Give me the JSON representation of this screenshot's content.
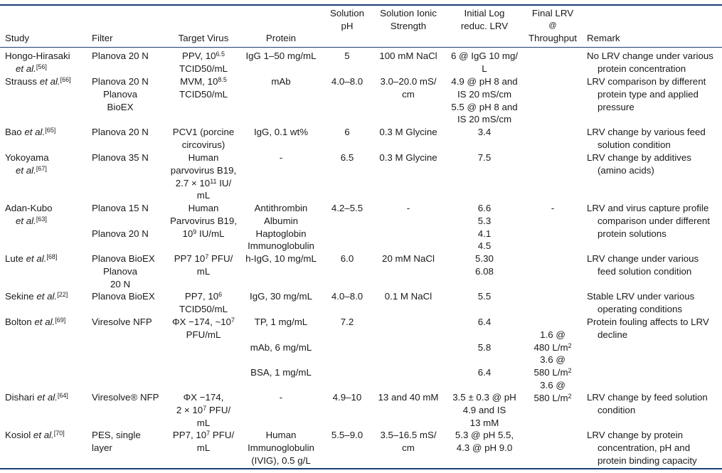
{
  "headers": {
    "study": "Study",
    "filter": "Filter",
    "target_virus": "Target Virus",
    "protein": "Protein",
    "solution_ph": [
      "Solution",
      "pH"
    ],
    "ionic_strength": [
      "Solution Ionic",
      "Strength"
    ],
    "initial_lrv": [
      "Initial Log",
      "reduc. LRV"
    ],
    "final_lrv": [
      "Final LRV",
      "@",
      "Throughput"
    ],
    "remark": "Remark"
  },
  "rows": [
    {
      "study": {
        "name": "Hongo-Hirasaki",
        "name2": "et al.",
        "ref": "[56]"
      },
      "filter": [
        "Planova 20 N"
      ],
      "virus": [
        "PPV, 10^6.5",
        "TCID50/mL"
      ],
      "protein": [
        "IgG 1–50 mg/mL"
      ],
      "ph": [
        "5"
      ],
      "ionic": [
        "100 mM NaCl"
      ],
      "initial": [
        "6 @ IgG 10 mg/",
        "L"
      ],
      "final": [],
      "remark": [
        "No LRV change under various",
        "protein concentration"
      ]
    },
    {
      "study": {
        "name": "Strauss",
        "name2": "",
        "ref": "[66]"
      },
      "filter": [
        "Planova 20 N",
        "Planova",
        "BioEX"
      ],
      "virus": [
        "MVM, 10^8.5",
        "TCID50/mL"
      ],
      "protein": [
        "mAb"
      ],
      "ph": [
        "4.0–8.0"
      ],
      "ionic": [
        "3.0–20.0 mS/",
        "cm"
      ],
      "initial": [
        "4.9 @ pH 8 and",
        "IS 20 mS/cm",
        "5.5 @ pH 8 and",
        "IS 20 mS/cm"
      ],
      "final": [],
      "remark": [
        "LRV comparison by different",
        "protein type and applied",
        "pressure"
      ]
    },
    {
      "study": {
        "name": "Bao",
        "name2": "",
        "ref": "[65]"
      },
      "filter": [
        "Planova 20 N"
      ],
      "virus": [
        "PCV1 (porcine",
        "circovirus)"
      ],
      "protein": [
        "IgG, 0.1 wt%"
      ],
      "ph": [
        "6"
      ],
      "ionic": [
        "0.3 M Glycine"
      ],
      "initial": [
        "3.4"
      ],
      "final": [],
      "remark": [
        "LRV change by various feed",
        "solution condition"
      ]
    },
    {
      "study": {
        "name": "Yokoyama",
        "name2": "et al.",
        "ref": "[67]"
      },
      "filter": [
        "Planova 35 N"
      ],
      "virus": [
        "Human",
        "parvovirus B19,",
        "2.7 × 10^11 IU/",
        "mL"
      ],
      "protein": [
        "-"
      ],
      "ph": [
        "6.5"
      ],
      "ionic": [
        "0.3 M Glycine"
      ],
      "initial": [
        "7.5"
      ],
      "final": [],
      "remark": [
        "LRV change by additives",
        "(amino acids)"
      ]
    },
    {
      "study": {
        "name": "Adan-Kubo",
        "name2": "et al.",
        "ref": "[63]"
      },
      "filter": [
        "Planova 15 N",
        "",
        "Planova 20 N"
      ],
      "virus": [
        "Human",
        "Parvovirus B19,",
        "10^9 IU/mL"
      ],
      "protein": [
        "Antithrombin",
        "Albumin",
        "Haptoglobin",
        "Immunoglobulin"
      ],
      "ph": [
        "4.2–5.5"
      ],
      "ionic": [
        "-"
      ],
      "initial": [
        "6.6",
        "5.3",
        "4.1",
        "4.5"
      ],
      "final": [
        "-"
      ],
      "remark": [
        "LRV and virus capture profile",
        "comparison under different",
        "protein solutions"
      ]
    },
    {
      "study": {
        "name": "Lute",
        "name2": "",
        "ref": "[68]"
      },
      "filter": [
        "Planova BioEX",
        "Planova",
        "20 N"
      ],
      "virus": [
        "PP7 10^7 PFU/",
        "mL"
      ],
      "protein": [
        "h-IgG, 10 mg/mL"
      ],
      "ph": [
        "6.0"
      ],
      "ionic": [
        "20 mM NaCl"
      ],
      "initial": [
        "5.30",
        "6.08"
      ],
      "final": [],
      "remark": [
        "LRV change under various",
        "feed solution condition"
      ]
    },
    {
      "study": {
        "name": "Sekine",
        "name2": "",
        "ref": "[22]"
      },
      "filter": [
        "Planova BioEX"
      ],
      "virus": [
        "PP7, 10^6",
        "TCID50/mL"
      ],
      "protein": [
        "IgG, 30 mg/mL"
      ],
      "ph": [
        "4.0–8.0"
      ],
      "ionic": [
        "0.1 M NaCl"
      ],
      "initial": [
        "5.5"
      ],
      "final": [],
      "remark": [
        "Stable LRV under various",
        "operating conditions"
      ]
    },
    {
      "study": {
        "name": "Bolton",
        "name2": "",
        "ref": "[69]"
      },
      "filter": [
        "Viresolve NFP"
      ],
      "virus": [
        "ΦX −174, ~10^7",
        "PFU/mL"
      ],
      "protein": [
        "TP, 1 mg/mL",
        "mAb, 6 mg/mL",
        "BSA, 1 mg/mL"
      ],
      "ph": [
        "7.2"
      ],
      "ionic": [],
      "initial": [
        "6.4",
        "5.8",
        "6.4"
      ],
      "final": [
        "1.6 @",
        "480 L/m^2",
        "3.6 @",
        "580 L/m^2",
        "3.6 @",
        "580 L/m^2"
      ],
      "remark": [
        "Protein fouling affects to LRV",
        "decline"
      ]
    },
    {
      "study": {
        "name": "Dishari",
        "name2": "",
        "ref": "[64]"
      },
      "filter": [
        "Viresolve® NFP"
      ],
      "virus": [
        "ΦX −174,",
        "2 × 10^7 PFU/",
        "mL"
      ],
      "protein": [
        "-"
      ],
      "ph": [
        "4.9–10"
      ],
      "ionic": [
        "13 and 40 mM"
      ],
      "initial": [
        "3.5 ± 0.3 @ pH",
        "4.9 and IS",
        "13 mM"
      ],
      "final": [],
      "remark": [
        "LRV change by feed solution",
        "condition"
      ]
    },
    {
      "study": {
        "name": "Kosiol",
        "name2": "",
        "ref": "[70]"
      },
      "filter": [
        "PES, single",
        "layer"
      ],
      "virus": [
        "PP7, 10^7 PFU/",
        "mL"
      ],
      "protein": [
        "Human",
        "Immunoglobulin",
        "(IVIG), 0.5 g/L"
      ],
      "ph": [
        "5.5–9.0"
      ],
      "ionic": [
        "3.5–16.5 mS/",
        "cm"
      ],
      "initial": [
        "5.3 @ pH 5.5,",
        "4.3 @ pH 9.0"
      ],
      "final": [],
      "remark": [
        "LRV change by protein",
        "concentration, pH and",
        "protein binding capacity"
      ]
    }
  ]
}
